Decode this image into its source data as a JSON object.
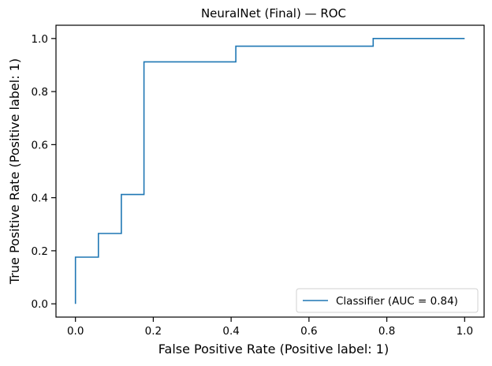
{
  "chart_data": {
    "type": "line",
    "title": "NeuralNet (Final) — ROC",
    "xlabel": "False Positive Rate (Positive label: 1)",
    "ylabel": "True Positive Rate (Positive label: 1)",
    "xlim": [
      -0.05,
      1.05
    ],
    "ylim": [
      -0.05,
      1.05
    ],
    "xticks": [
      0.0,
      0.2,
      0.4,
      0.6,
      0.8,
      1.0
    ],
    "yticks": [
      0.0,
      0.2,
      0.4,
      0.6,
      0.8,
      1.0
    ],
    "xtick_labels": [
      "0.0",
      "0.2",
      "0.4",
      "0.6",
      "0.8",
      "1.0"
    ],
    "ytick_labels": [
      "0.0",
      "0.2",
      "0.4",
      "0.6",
      "0.8",
      "1.0"
    ],
    "grid": false,
    "legend_position": "lower-right",
    "series": [
      {
        "name": "Classifier (AUC = 0.84)",
        "color": "#1f77b4",
        "x": [
          0.0,
          0.0,
          0.059,
          0.059,
          0.118,
          0.118,
          0.176,
          0.176,
          0.412,
          0.412,
          0.765,
          0.765,
          1.0
        ],
        "y": [
          0.0,
          0.176,
          0.176,
          0.265,
          0.265,
          0.412,
          0.412,
          0.912,
          0.912,
          0.971,
          0.971,
          1.0,
          1.0
        ]
      }
    ]
  }
}
